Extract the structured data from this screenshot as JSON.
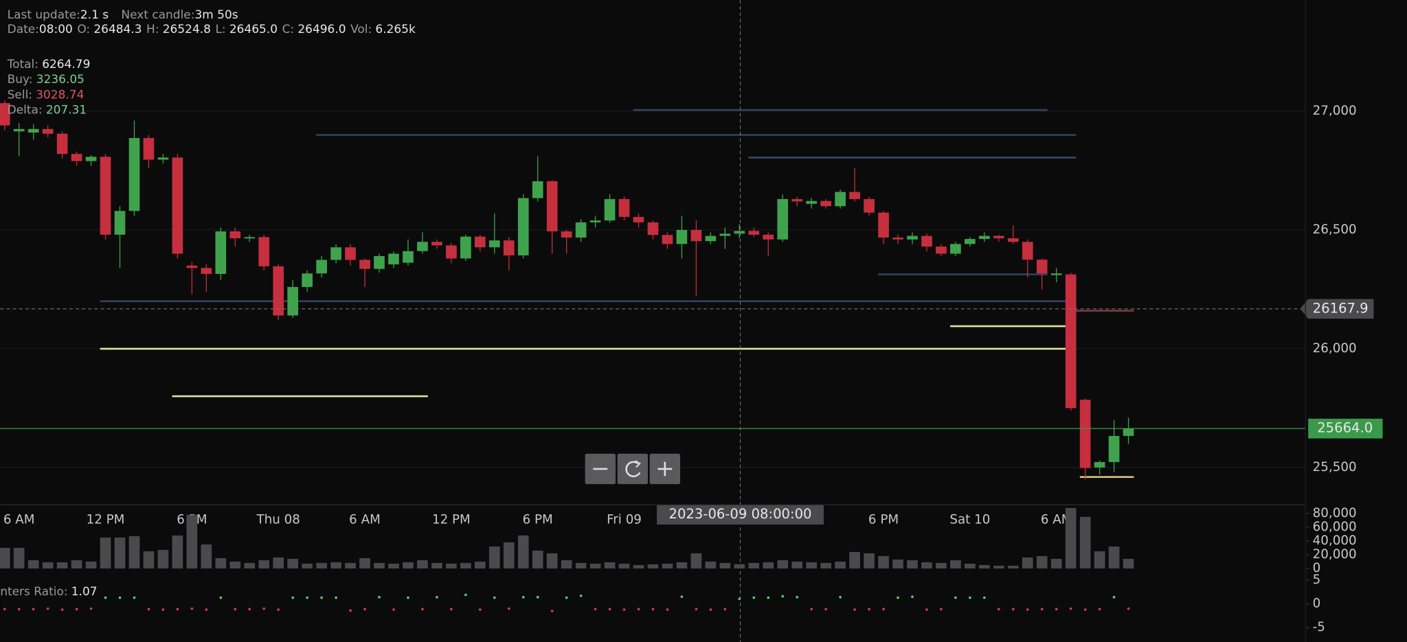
{
  "header": {
    "last_update_label": "Last update:",
    "last_update": "2.1 s",
    "next_candle_label": "Next candle:",
    "next_candle": "3m 50s",
    "date_label": "Date:",
    "date": "08:00",
    "o_label": "O:",
    "o": "26484.3",
    "h_label": "H:",
    "h": "26524.8",
    "l_label": "L:",
    "l": "26465.0",
    "c_label": "C:",
    "c": "26496.0",
    "vol_label": "Vol:",
    "vol": "6.265k"
  },
  "stats": {
    "total_label": "Total:",
    "total": 6264.79,
    "buy_label": "Buy:",
    "buy": 3236.05,
    "sell_label": "Sell:",
    "sell": 3028.74,
    "delta_label": "Delta:",
    "delta": 207.31
  },
  "chart_data": [
    {
      "type": "candlestick",
      "categories": [
        null,
        "6 AM",
        null,
        null,
        null,
        null,
        null,
        "12 PM",
        null,
        null,
        null,
        null,
        null,
        "6 PM",
        null,
        null,
        null,
        null,
        null,
        "Thu 08",
        null,
        null,
        null,
        null,
        null,
        "6 AM",
        null,
        null,
        null,
        null,
        null,
        "12 PM",
        null,
        null,
        null,
        null,
        null,
        "6 PM",
        null,
        null,
        null,
        null,
        null,
        "Fri 09",
        null,
        null,
        null,
        null,
        null,
        null,
        null,
        null,
        null,
        null,
        null,
        null,
        null,
        null,
        null,
        null,
        null,
        "6 PM",
        null,
        null,
        null,
        null,
        null,
        "Sat 10",
        null,
        null,
        null,
        null,
        null,
        "6 AM",
        null,
        null,
        null,
        null,
        null
      ],
      "open": [
        27034,
        26915,
        26910,
        26925,
        26905,
        26820,
        26790,
        26808,
        26480,
        26580,
        26887,
        26796,
        26805,
        26350,
        26340,
        26315,
        26494,
        26465,
        26470,
        26347,
        26140,
        26260,
        26317,
        26374,
        26427,
        26374,
        26336,
        26355,
        26362,
        26411,
        26450,
        26435,
        26380,
        26472,
        26427,
        26456,
        26393,
        26634,
        26705,
        26494,
        26468,
        26532,
        26540,
        26630,
        26555,
        26532,
        26479,
        26441,
        26500,
        26453,
        26475,
        26484.3,
        26496,
        26480,
        26460,
        26630,
        26610,
        26622,
        26600,
        26660,
        26630,
        26573,
        26468,
        26460,
        26475,
        26430,
        26400,
        26441,
        26462,
        26475,
        26465,
        26450,
        26375,
        26310,
        26313,
        25785,
        25500,
        25523,
        25633
      ],
      "high": [
        27045,
        26950,
        26945,
        26940,
        26915,
        26830,
        26815,
        26820,
        26600,
        26960,
        26900,
        26820,
        26820,
        26365,
        26355,
        26510,
        26510,
        26480,
        26480,
        26355,
        26290,
        26330,
        26390,
        26440,
        26440,
        26380,
        26400,
        26410,
        26460,
        26490,
        26460,
        26445,
        26480,
        26480,
        26570,
        26470,
        26650,
        26810,
        26710,
        26500,
        26545,
        26560,
        26650,
        26640,
        26570,
        26540,
        26490,
        26560,
        26540,
        26490,
        26510,
        26524.8,
        26510,
        26490,
        26650,
        26640,
        26635,
        26630,
        26670,
        26760,
        26640,
        26580,
        26480,
        26490,
        26485,
        26440,
        26450,
        26470,
        26490,
        26480,
        26520,
        26460,
        26380,
        26340,
        26320,
        25790,
        25530,
        25700,
        25710
      ],
      "low": [
        26920,
        26810,
        26880,
        26890,
        26800,
        26770,
        26770,
        26460,
        26340,
        26560,
        26760,
        26780,
        26380,
        26230,
        26240,
        26290,
        26430,
        26450,
        26330,
        26120,
        26130,
        26240,
        26300,
        26360,
        26350,
        26260,
        26320,
        26340,
        26350,
        26400,
        26420,
        26360,
        26370,
        26410,
        26400,
        26330,
        26380,
        26620,
        26400,
        26400,
        26450,
        26510,
        26530,
        26540,
        26510,
        26460,
        26420,
        26380,
        26220,
        26440,
        26420,
        26465,
        26470,
        26390,
        26450,
        26600,
        26590,
        26590,
        26590,
        26620,
        26560,
        26440,
        26440,
        26440,
        26410,
        26390,
        26390,
        26430,
        26450,
        26450,
        26440,
        26300,
        26250,
        26280,
        25740,
        25450,
        25470,
        25480,
        25600
      ],
      "close": [
        26940,
        26925,
        26925,
        26905,
        26820,
        26790,
        26808,
        26480,
        26580,
        26887,
        26796,
        26805,
        26400,
        26340,
        26315,
        26494,
        26465,
        26470,
        26347,
        26140,
        26260,
        26317,
        26374,
        26427,
        26374,
        26336,
        26390,
        26400,
        26411,
        26450,
        26435,
        26380,
        26472,
        26427,
        26456,
        26393,
        26634,
        26705,
        26494,
        26468,
        26532,
        26540,
        26630,
        26555,
        26532,
        26479,
        26441,
        26500,
        26453,
        26475,
        26484.3,
        26496,
        26480,
        26460,
        26630,
        26620,
        26622,
        26600,
        26660,
        26630,
        26573,
        26468,
        26460,
        26475,
        26430,
        26400,
        26441,
        26462,
        26475,
        26465,
        26450,
        26375,
        26317,
        26317,
        25750,
        25498,
        25523,
        25633,
        25664
      ],
      "up_color": "#3fa34d",
      "down_color": "#c62f3e",
      "ylim": [
        25343,
        27468
      ],
      "yticks": [
        {
          "value": 25500,
          "label": "25,500"
        },
        {
          "value": 26000,
          "label": "26,000"
        },
        {
          "value": 26500,
          "label": "26,500"
        },
        {
          "value": 27000,
          "label": "27,000"
        }
      ],
      "grid": true,
      "last_price": {
        "value": 25664,
        "label": "25664.0",
        "color": "#3a9a4a"
      },
      "crosshair": {
        "label": "2023-06-09 08:00:00",
        "price": 26167.9
      },
      "levels": [
        {
          "price": 26000,
          "from": 7,
          "to": 74,
          "color": "#e6e39a"
        },
        {
          "price": 25800,
          "from": 12,
          "to": 29,
          "color": "#e6e39a"
        },
        {
          "price": 26095,
          "from": 66,
          "to": 74,
          "color": "#e6e39a"
        },
        {
          "price": 25460,
          "from": 75,
          "to": 78,
          "color": "#d9c27a"
        },
        {
          "price": 26200,
          "from": 7,
          "to": 74,
          "color": "#33415f"
        },
        {
          "price": 26900,
          "from": 22,
          "to": 74,
          "color": "#33415f"
        },
        {
          "price": 27005,
          "from": 44,
          "to": 72,
          "color": "#33415f"
        },
        {
          "price": 26805,
          "from": 52,
          "to": 74,
          "color": "#3b4868"
        },
        {
          "price": 26313,
          "from": 61,
          "to": 72,
          "color": "#33415f"
        },
        {
          "price": 26160,
          "from": 74,
          "to": 78,
          "color": "#7a3a48"
        }
      ]
    },
    {
      "type": "bar",
      "values": [
        30000,
        30000,
        12000,
        9000,
        9000,
        12000,
        10000,
        45000,
        45000,
        47000,
        25000,
        27000,
        48000,
        78000,
        35000,
        15000,
        10000,
        8000,
        12000,
        16000,
        14000,
        7000,
        8000,
        9000,
        8000,
        15000,
        8000,
        7000,
        9000,
        12000,
        8000,
        7000,
        8000,
        10000,
        32000,
        38000,
        48000,
        26000,
        22000,
        12000,
        8000,
        7000,
        9000,
        7000,
        5000,
        6000,
        7000,
        9000,
        22000,
        10000,
        8000,
        6265,
        8000,
        9000,
        12000,
        10000,
        9000,
        8000,
        10000,
        24000,
        22000,
        18000,
        13000,
        12000,
        9000,
        8000,
        12000,
        7000,
        5000,
        4000,
        4000,
        16000,
        18000,
        14000,
        88000,
        75000,
        25000,
        32000,
        14000
      ],
      "color": "#4a4a4c",
      "ylim": [
        0,
        90000
      ],
      "yticks": [
        0,
        {
          "value": 20000,
          "label": "20,000"
        },
        {
          "value": 40000,
          "label": "40,000"
        },
        {
          "value": 60000,
          "label": "60,000"
        },
        {
          "value": 80000,
          "label": "80,000"
        }
      ]
    },
    {
      "type": "scatter",
      "title": "nters Ratio:",
      "current": 1.07,
      "values": [
        -1.1,
        -1.1,
        -1.1,
        -1.0,
        -1.2,
        -1.1,
        -1.0,
        1.3,
        1.3,
        1.3,
        -1.1,
        -1.2,
        -1.1,
        -1.0,
        -1.2,
        1.3,
        -1.1,
        -1.1,
        -1.0,
        -1.2,
        1.3,
        1.3,
        1.3,
        1.3,
        -1.4,
        -1.1,
        1.4,
        -1.2,
        1.3,
        -1.1,
        1.4,
        -1.1,
        1.9,
        -1.2,
        1.3,
        -1.0,
        1.4,
        1.4,
        -1.5,
        1.3,
        1.7,
        -1.1,
        -1.1,
        -1.2,
        -1.1,
        -1.1,
        -1.2,
        1.5,
        -1.1,
        -1.2,
        -1.1,
        1.07,
        1.3,
        1.3,
        1.6,
        1.4,
        -1.1,
        -1.1,
        1.4,
        -1.2,
        -1.1,
        -1.1,
        1.3,
        1.5,
        -1.2,
        -1.1,
        1.3,
        1.3,
        1.3,
        -1.1,
        -1.1,
        -1.2,
        -1.1,
        -1.1,
        -1.0,
        -1.2,
        -1.1,
        1.4,
        -1.0
      ],
      "pos_color": "#5ad06a",
      "neg_color": "#d0404e",
      "ylim": [
        -8,
        6.3
      ],
      "yticks": [
        5,
        0,
        -5
      ]
    }
  ]
}
